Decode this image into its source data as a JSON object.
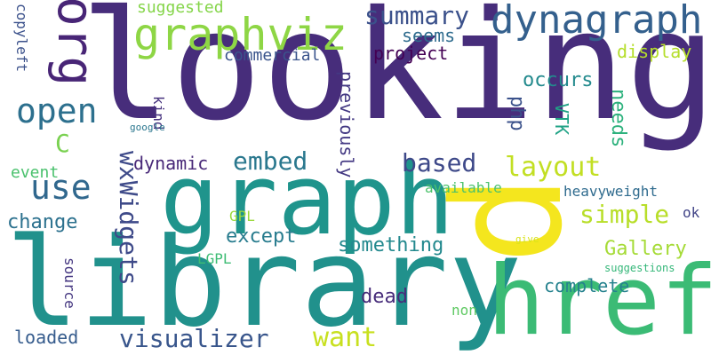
{
  "words": [
    {
      "text": "looking",
      "color": "#472d7b"
    },
    {
      "text": "library",
      "color": "#21918c"
    },
    {
      "text": "graph",
      "color": "#1f948c"
    },
    {
      "text": "p",
      "color": "#f4e61e"
    },
    {
      "text": "href",
      "color": "#3bbb75"
    },
    {
      "text": "graphviz",
      "color": "#8ed645"
    },
    {
      "text": "dynagraph",
      "color": "#34608d"
    },
    {
      "text": "org",
      "color": "#482576"
    },
    {
      "text": "summary",
      "color": "#3b518b"
    },
    {
      "text": "suggested",
      "color": "#85d54a"
    },
    {
      "text": "open",
      "color": "#2d708e"
    },
    {
      "text": "use",
      "color": "#31688e"
    },
    {
      "text": "wxWidgets",
      "color": "#3e4a89"
    },
    {
      "text": "embed",
      "color": "#2a788e"
    },
    {
      "text": "dynamic",
      "color": "#482878"
    },
    {
      "text": "based",
      "color": "#3e4989"
    },
    {
      "text": "layout",
      "color": "#c2df23"
    },
    {
      "text": "simple",
      "color": "#b8de29"
    },
    {
      "text": "visualizer",
      "color": "#39568c"
    },
    {
      "text": "want",
      "color": "#c8e020"
    },
    {
      "text": "Gallery",
      "color": "#a5db36"
    },
    {
      "text": "something",
      "color": "#23898e"
    },
    {
      "text": "except",
      "color": "#287c8e"
    },
    {
      "text": "change",
      "color": "#2c718e"
    },
    {
      "text": "occurs",
      "color": "#238a8d"
    },
    {
      "text": "seems",
      "color": "#2f6c8e"
    },
    {
      "text": "project",
      "color": "#440154"
    },
    {
      "text": "commercial",
      "color": "#3a548c"
    },
    {
      "text": "display",
      "color": "#b5de2b"
    },
    {
      "text": "php",
      "color": "#3b528b"
    },
    {
      "text": "VTK",
      "color": "#20a386"
    },
    {
      "text": "needs",
      "color": "#2db27d"
    },
    {
      "text": "previously",
      "color": "#443983"
    },
    {
      "text": "kind",
      "color": "#46327e"
    },
    {
      "text": "google",
      "color": "#2a768e"
    },
    {
      "text": "copyleft",
      "color": "#3b518b"
    },
    {
      "text": "C",
      "color": "#7ad151"
    },
    {
      "text": "event",
      "color": "#4ac16d"
    },
    {
      "text": "available",
      "color": "#4cc26c"
    },
    {
      "text": "heavyweight",
      "color": "#2f6b8e"
    },
    {
      "text": "ok",
      "color": "#414487"
    },
    {
      "text": "GPL",
      "color": "#9bd93c"
    },
    {
      "text": "LGPL",
      "color": "#3dbc74"
    },
    {
      "text": "give",
      "color": "#d8e219"
    },
    {
      "text": "suggestions",
      "color": "#35b779"
    },
    {
      "text": "complete",
      "color": "#26828e"
    },
    {
      "text": "source",
      "color": "#453781"
    },
    {
      "text": "dead",
      "color": "#472c7a"
    },
    {
      "text": "non",
      "color": "#5ec962"
    },
    {
      "text": "loaded",
      "color": "#365c8d"
    }
  ]
}
